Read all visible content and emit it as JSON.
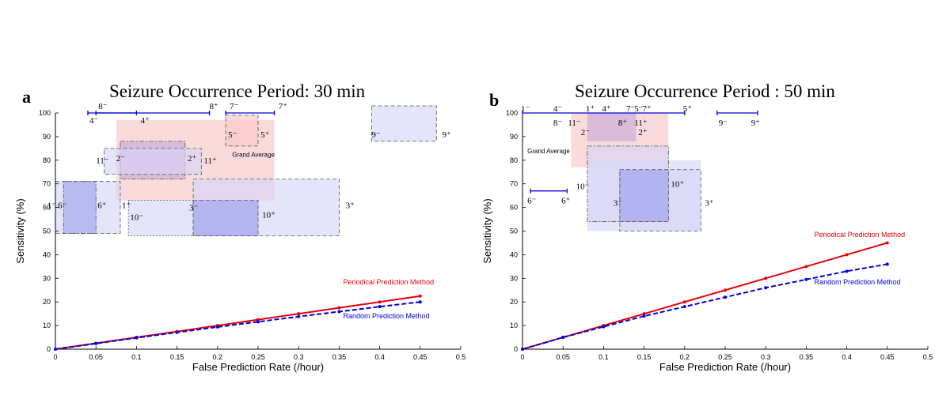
{
  "chart_data": [
    {
      "type": "line",
      "panel_letter": "a",
      "title": "Seizure Occurrence Period: 30 min",
      "xlabel": "False Prediction Rate (/hour)",
      "ylabel": "Sensitivity (%)",
      "xlim": [
        0,
        0.5
      ],
      "ylim": [
        0,
        100
      ],
      "xticks": [
        0,
        0.05,
        0.1,
        0.15,
        0.2,
        0.25,
        0.3,
        0.35,
        0.4,
        0.45,
        0.5
      ],
      "xtick_labels": [
        "0",
        "0.05",
        "0.1",
        "0.15",
        "0.2",
        "0.25",
        "0.3",
        "0.35",
        "0.4",
        "0.45",
        "0.5"
      ],
      "yticks": [
        0,
        10,
        20,
        30,
        40,
        50,
        60,
        70,
        80,
        90,
        100
      ],
      "ytick_labels": [
        "0",
        "10",
        "20",
        "30",
        "40",
        "50",
        "60",
        "70",
        "80",
        "90",
        "100"
      ],
      "series": [
        {
          "name": "Periodical Prediction Method",
          "color": "#e8000b",
          "style": "solid",
          "x": [
            0,
            0.05,
            0.1,
            0.15,
            0.2,
            0.25,
            0.3,
            0.35,
            0.4,
            0.45
          ],
          "y": [
            0,
            2.5,
            5,
            7.5,
            10,
            12.5,
            15,
            17.5,
            20,
            22.5
          ]
        },
        {
          "name": "Random Prediction Method",
          "color": "#0000e0",
          "style": "dashed",
          "x": [
            0,
            0.05,
            0.1,
            0.15,
            0.2,
            0.25,
            0.3,
            0.35,
            0.4,
            0.45
          ],
          "y": [
            0,
            2.4,
            4.8,
            7.1,
            9.4,
            11.6,
            13.8,
            15.9,
            18.0,
            20.0
          ]
        }
      ],
      "series_label_pos": [
        [
          0.355,
          27.5
        ],
        [
          0.355,
          13.0
        ]
      ],
      "regions": [
        {
          "x": [
            0.075,
            0.27
          ],
          "y": [
            63,
            97
          ],
          "color": "pink",
          "border": "none"
        },
        {
          "x": [
            0.21,
            0.25
          ],
          "y": [
            86,
            99
          ],
          "color": "pink",
          "border": "dashed"
        },
        {
          "x": [
            0.08,
            0.16
          ],
          "y": [
            72,
            88
          ],
          "color": "mauve",
          "border": "dashdot"
        },
        {
          "x": [
            0.06,
            0.18
          ],
          "y": [
            74,
            85
          ],
          "color": "lightblue",
          "border": "dashed"
        },
        {
          "x": [
            0,
            0.08
          ],
          "y": [
            49,
            71
          ],
          "color": "lightblue",
          "border": "dashed"
        },
        {
          "x": [
            0.01,
            0.05
          ],
          "y": [
            49,
            71
          ],
          "color": "blue",
          "border": "dashdot"
        },
        {
          "x": [
            0.09,
            0.25
          ],
          "y": [
            48,
            63
          ],
          "color": "lightblue",
          "border": "dotted"
        },
        {
          "x": [
            0.17,
            0.35
          ],
          "y": [
            48,
            72
          ],
          "color": "lightblue",
          "border": "dashed"
        },
        {
          "x": [
            0.17,
            0.25
          ],
          "y": [
            48,
            63
          ],
          "color": "blue",
          "border": "dashed"
        },
        {
          "x": [
            0.39,
            0.47
          ],
          "y": [
            88,
            103
          ],
          "color": "lightblue",
          "border": "dashed"
        }
      ],
      "hlines": [
        {
          "x": [
            0.04,
            0.1
          ],
          "y": 100
        },
        {
          "x": [
            0.05,
            0.19
          ],
          "y": 100
        },
        {
          "x": [
            0.21,
            0.27
          ],
          "y": 100
        }
      ],
      "annotations": [
        {
          "text": "8⁻",
          "x": 0.053,
          "y": 103
        },
        {
          "text": "8⁺",
          "x": 0.19,
          "y": 103
        },
        {
          "text": "7⁻",
          "x": 0.215,
          "y": 103
        },
        {
          "text": "7⁺",
          "x": 0.275,
          "y": 103
        },
        {
          "text": "4⁻",
          "x": 0.042,
          "y": 97
        },
        {
          "text": "4⁺",
          "x": 0.105,
          "y": 97
        },
        {
          "text": "5⁻",
          "x": 0.213,
          "y": 91
        },
        {
          "text": "5⁺",
          "x": 0.253,
          "y": 91
        },
        {
          "text": "9⁻",
          "x": 0.39,
          "y": 91
        },
        {
          "text": "9⁺",
          "x": 0.477,
          "y": 91
        },
        {
          "text": "2⁻",
          "x": 0.075,
          "y": 81
        },
        {
          "text": "2⁺",
          "x": 0.163,
          "y": 81
        },
        {
          "text": "11⁻",
          "x": 0.05,
          "y": 80
        },
        {
          "text": "11⁺",
          "x": 0.183,
          "y": 80
        },
        {
          "text": "1⁻",
          "x": -0.01,
          "y": 61
        },
        {
          "text": "6⁻",
          "x": 0.003,
          "y": 61
        },
        {
          "text": "6⁺",
          "x": 0.052,
          "y": 61
        },
        {
          "text": "1⁺",
          "x": 0.082,
          "y": 61
        },
        {
          "text": "3⁻",
          "x": 0.165,
          "y": 60
        },
        {
          "text": "3⁺",
          "x": 0.358,
          "y": 61
        },
        {
          "text": "10⁻",
          "x": 0.092,
          "y": 56
        },
        {
          "text": "10⁺",
          "x": 0.255,
          "y": 57
        }
      ],
      "grand_average_label": "Grand Average",
      "grand_average_pos": [
        0.218,
        81.5
      ]
    },
    {
      "type": "line",
      "panel_letter": "b",
      "title": "Seizure Occurrence Period : 50 min",
      "xlabel": "False Prediction Rate (/hour)",
      "ylabel": "Sensitivity (%)",
      "xlim": [
        0,
        0.5
      ],
      "ylim": [
        0,
        100
      ],
      "xticks": [
        0,
        0.05,
        0.1,
        0.15,
        0.2,
        0.25,
        0.3,
        0.35,
        0.4,
        0.45,
        0.5
      ],
      "xtick_labels": [
        "0",
        "0.05",
        "0.1",
        "0.15",
        "0.2",
        "0.25",
        "0.3",
        "0.35",
        "0.4",
        "0.45",
        "0.5"
      ],
      "yticks": [
        0,
        10,
        20,
        30,
        40,
        50,
        60,
        70,
        80,
        90,
        100
      ],
      "ytick_labels": [
        "0",
        "10",
        "20",
        "30",
        "40",
        "50",
        "60",
        "70",
        "80",
        "90",
        "100"
      ],
      "series": [
        {
          "name": "Periodical Prediction Method",
          "color": "#e8000b",
          "style": "solid",
          "x": [
            0,
            0.05,
            0.1,
            0.15,
            0.2,
            0.25,
            0.3,
            0.35,
            0.4,
            0.45
          ],
          "y": [
            0,
            5,
            10,
            15,
            20,
            25,
            30,
            35,
            40,
            45
          ]
        },
        {
          "name": "Random Prediction Method",
          "color": "#0000e0",
          "style": "dashed",
          "x": [
            0,
            0.05,
            0.1,
            0.15,
            0.2,
            0.25,
            0.3,
            0.35,
            0.4,
            0.45
          ],
          "y": [
            0,
            5,
            9.5,
            14,
            18,
            22,
            26,
            29.5,
            33,
            36
          ]
        }
      ],
      "series_label_pos": [
        [
          0.36,
          47.5
        ],
        [
          0.36,
          27.5
        ]
      ],
      "regions": [
        {
          "x": [
            0.06,
            0.18
          ],
          "y": [
            77,
            100
          ],
          "color": "pink",
          "border": "none"
        },
        {
          "x": [
            0.08,
            0.14
          ],
          "y": [
            88,
            100
          ],
          "color": "mauve",
          "border": "none"
        },
        {
          "x": [
            0.08,
            0.22
          ],
          "y": [
            50,
            80
          ],
          "color": "lightblue",
          "border": "none"
        },
        {
          "x": [
            0.08,
            0.18
          ],
          "y": [
            54,
            86
          ],
          "color": "lightblue",
          "border": "dashdot"
        },
        {
          "x": [
            0.12,
            0.22
          ],
          "y": [
            50,
            76
          ],
          "color": "lightblue",
          "border": "dashed"
        },
        {
          "x": [
            0.12,
            0.18
          ],
          "y": [
            54,
            76
          ],
          "color": "blue",
          "border": "dashed"
        }
      ],
      "hlines": [
        {
          "x": [
            0,
            0.2
          ],
          "y": 100
        },
        {
          "x": [
            0.24,
            0.29
          ],
          "y": 100
        },
        {
          "x": [
            0.01,
            0.055
          ],
          "y": 67
        }
      ],
      "annotations": [
        {
          "text": "1⁻",
          "x": -0.002,
          "y": 102
        },
        {
          "text": "4⁻",
          "x": 0.038,
          "y": 102
        },
        {
          "text": "1⁺",
          "x": 0.078,
          "y": 102
        },
        {
          "text": "4⁺",
          "x": 0.098,
          "y": 102
        },
        {
          "text": "7⁻",
          "x": 0.128,
          "y": 102
        },
        {
          "text": "5⁻",
          "x": 0.138,
          "y": 102
        },
        {
          "text": "7⁺",
          "x": 0.148,
          "y": 102
        },
        {
          "text": "5⁺",
          "x": 0.198,
          "y": 102
        },
        {
          "text": "8⁻",
          "x": 0.038,
          "y": 96
        },
        {
          "text": "11⁻",
          "x": 0.056,
          "y": 96
        },
        {
          "text": "8⁺",
          "x": 0.118,
          "y": 96
        },
        {
          "text": "11⁺",
          "x": 0.138,
          "y": 96
        },
        {
          "text": "9⁻",
          "x": 0.242,
          "y": 96
        },
        {
          "text": "9⁺",
          "x": 0.282,
          "y": 96
        },
        {
          "text": "2⁻",
          "x": 0.072,
          "y": 92
        },
        {
          "text": "2⁺",
          "x": 0.143,
          "y": 92
        },
        {
          "text": "10⁻",
          "x": 0.066,
          "y": 69
        },
        {
          "text": "10⁺",
          "x": 0.183,
          "y": 70
        },
        {
          "text": "6⁻",
          "x": 0.006,
          "y": 63
        },
        {
          "text": "6⁺",
          "x": 0.048,
          "y": 63
        },
        {
          "text": "3⁻",
          "x": 0.112,
          "y": 62
        },
        {
          "text": "3⁺",
          "x": 0.225,
          "y": 62
        }
      ],
      "grand_average_label": "Grand Average",
      "grand_average_pos": [
        0.006,
        83
      ]
    }
  ],
  "colors": {
    "pink": "#f7c8c8",
    "mauve": "#c9aad9",
    "lightblue": "#d6d6f7",
    "blue": "#9fa3ee",
    "axis": "#000000",
    "hline": "#0000e0"
  }
}
